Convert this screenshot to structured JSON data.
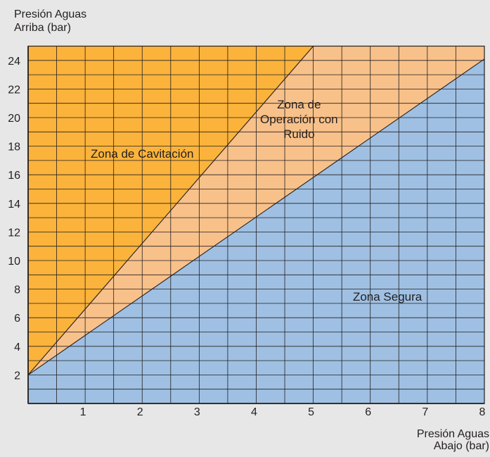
{
  "chart_data": {
    "type": "area",
    "ylabel": [
      "Presión Aguas",
      "Arriba (bar)"
    ],
    "xlabel": [
      "Presión Aguas",
      "Abajo (bar)"
    ],
    "xlim": [
      0,
      8
    ],
    "ylim": [
      0,
      25
    ],
    "x_ticks": [
      1,
      2,
      3,
      4,
      5,
      6,
      7,
      8
    ],
    "y_ticks": [
      2,
      4,
      6,
      8,
      10,
      12,
      14,
      16,
      18,
      20,
      22,
      24
    ],
    "grid": true,
    "zones": [
      {
        "name": "Zona de Cavitación",
        "label_lines": [
          "Zona de Cavitación"
        ],
        "color": "#fbb33b",
        "polygon": [
          [
            0,
            2
          ],
          [
            0,
            25
          ],
          [
            5,
            25
          ]
        ],
        "label_at": [
          2,
          17.2
        ]
      },
      {
        "name": "Zona de Operación con Ruido",
        "label_lines": [
          "Zona de",
          "Operación con",
          "Ruido"
        ],
        "color": "#f8c18a",
        "polygon": [
          [
            0,
            2
          ],
          [
            5,
            25
          ],
          [
            8,
            25
          ],
          [
            8,
            24.1
          ]
        ],
        "label_at": [
          4.75,
          19.6
        ]
      },
      {
        "name": "Zona Segura",
        "label_lines": [
          "Zona Segura"
        ],
        "color": "#9fc0e3",
        "polygon": [
          [
            0,
            2
          ],
          [
            8,
            24.1
          ],
          [
            8,
            0
          ],
          [
            0,
            0
          ]
        ],
        "label_at": [
          6.3,
          7.2
        ]
      }
    ],
    "boundary_lines": [
      {
        "x": [
          0,
          5
        ],
        "y": [
          2,
          25
        ]
      },
      {
        "x": [
          0,
          8
        ],
        "y": [
          2,
          24.1
        ]
      }
    ]
  }
}
